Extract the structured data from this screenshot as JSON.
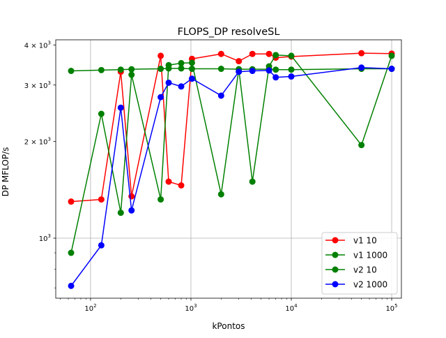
{
  "chart_data": {
    "type": "line",
    "title": "FLOPS_DP resolveSL",
    "xlabel": "kPontos",
    "ylabel": "DP MFLOP/s",
    "xscale": "log",
    "yscale": "log",
    "xlim": [
      45,
      125000
    ],
    "ylim": [
      650,
      4150
    ],
    "grid": true,
    "legend_position": "lower right",
    "x_ticks": [
      {
        "value": 100,
        "base": "10",
        "exp": "2"
      },
      {
        "value": 1000,
        "base": "10",
        "exp": "3"
      },
      {
        "value": 10000,
        "base": "10",
        "exp": "4"
      },
      {
        "value": 100000,
        "base": "10",
        "exp": "5"
      }
    ],
    "y_ticks": [
      {
        "value": 1000,
        "mant": "",
        "base": "10",
        "exp": "3"
      },
      {
        "value": 2000,
        "mant": "2 × ",
        "base": "10",
        "exp": "3"
      },
      {
        "value": 3000,
        "mant": "3 × ",
        "base": "10",
        "exp": "3"
      },
      {
        "value": 4000,
        "mant": "4 × ",
        "base": "10",
        "exp": "3"
      }
    ],
    "series": [
      {
        "name": "v1 10",
        "color": "#ff0000",
        "x": [
          64,
          128,
          200,
          256,
          500,
          600,
          800,
          1024,
          2000,
          3000,
          4096,
          6000,
          7000,
          10000,
          50000,
          100000
        ],
        "y": [
          1300,
          1320,
          3300,
          1350,
          3700,
          1500,
          1460,
          3620,
          3750,
          3560,
          3750,
          3750,
          3650,
          3680,
          3770,
          3760
        ]
      },
      {
        "name": "v1 1000",
        "color": "#008000",
        "x": [
          64,
          128,
          200,
          256,
          500,
          600,
          800,
          1024,
          2000,
          3000,
          4096,
          6000,
          7000,
          10000,
          50000,
          100000
        ],
        "y": [
          3320,
          3340,
          3350,
          3360,
          3370,
          3380,
          3380,
          3370,
          3370,
          3360,
          3360,
          3360,
          3350,
          3350,
          3370,
          3370
        ]
      },
      {
        "name": "v2 10",
        "color": "#008000",
        "x": [
          64,
          128,
          200,
          256,
          500,
          600,
          800,
          1024,
          2000,
          3000,
          4096,
          6000,
          7000,
          10000,
          50000,
          100000
        ],
        "y": [
          900,
          2440,
          1200,
          3230,
          1320,
          3460,
          3510,
          3520,
          1370,
          3360,
          1500,
          3430,
          3720,
          3700,
          1950,
          3700
        ]
      },
      {
        "name": "v2 1000",
        "color": "#0000ff",
        "x": [
          64,
          128,
          200,
          256,
          500,
          600,
          800,
          1024,
          2000,
          3000,
          4096,
          6000,
          7000,
          10000,
          50000,
          100000
        ],
        "y": [
          710,
          950,
          2550,
          1220,
          2750,
          3050,
          2970,
          3140,
          2780,
          3300,
          3320,
          3330,
          3170,
          3190,
          3400,
          3370
        ]
      }
    ]
  }
}
